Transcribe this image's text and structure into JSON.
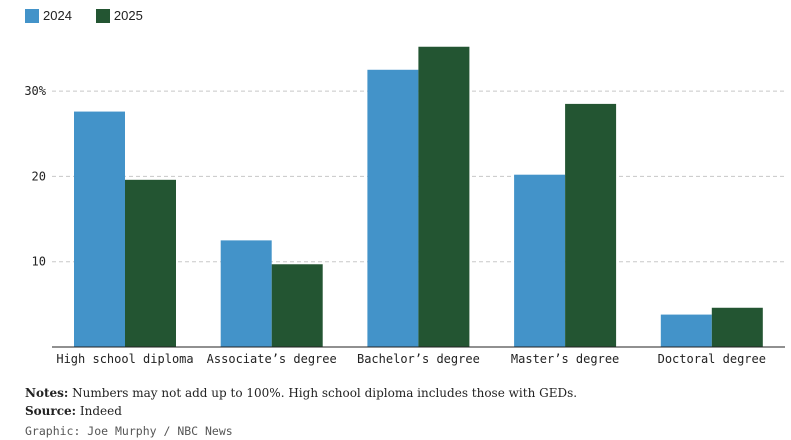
{
  "legend": [
    {
      "label": "2024",
      "color": "#4393c9"
    },
    {
      "label": "2025",
      "color": "#235532"
    }
  ],
  "chart_data": {
    "type": "bar",
    "categories": [
      "High school diploma",
      "Associate’s degree",
      "Bachelor’s degree",
      "Master’s degree",
      "Doctoral degree"
    ],
    "series": [
      {
        "name": "2024",
        "color": "#4393c9",
        "values": [
          27.6,
          12.5,
          32.5,
          20.2,
          3.8
        ]
      },
      {
        "name": "2025",
        "color": "#235532",
        "values": [
          19.6,
          9.7,
          35.2,
          28.5,
          4.6
        ]
      }
    ],
    "yticks": [
      {
        "value": 10,
        "label": "10"
      },
      {
        "value": 20,
        "label": "20"
      },
      {
        "value": 30,
        "label": "30%"
      }
    ],
    "ylim": [
      0,
      36
    ],
    "grid": true,
    "legend_position": "top-left"
  },
  "notes": {
    "notes_label": "Notes:",
    "notes_text": " Numbers may not add up to 100%. High school diploma includes those with GEDs.",
    "source_label": "Source:",
    "source_text": " Indeed",
    "credit": "Graphic: Joe Murphy / NBC News"
  }
}
